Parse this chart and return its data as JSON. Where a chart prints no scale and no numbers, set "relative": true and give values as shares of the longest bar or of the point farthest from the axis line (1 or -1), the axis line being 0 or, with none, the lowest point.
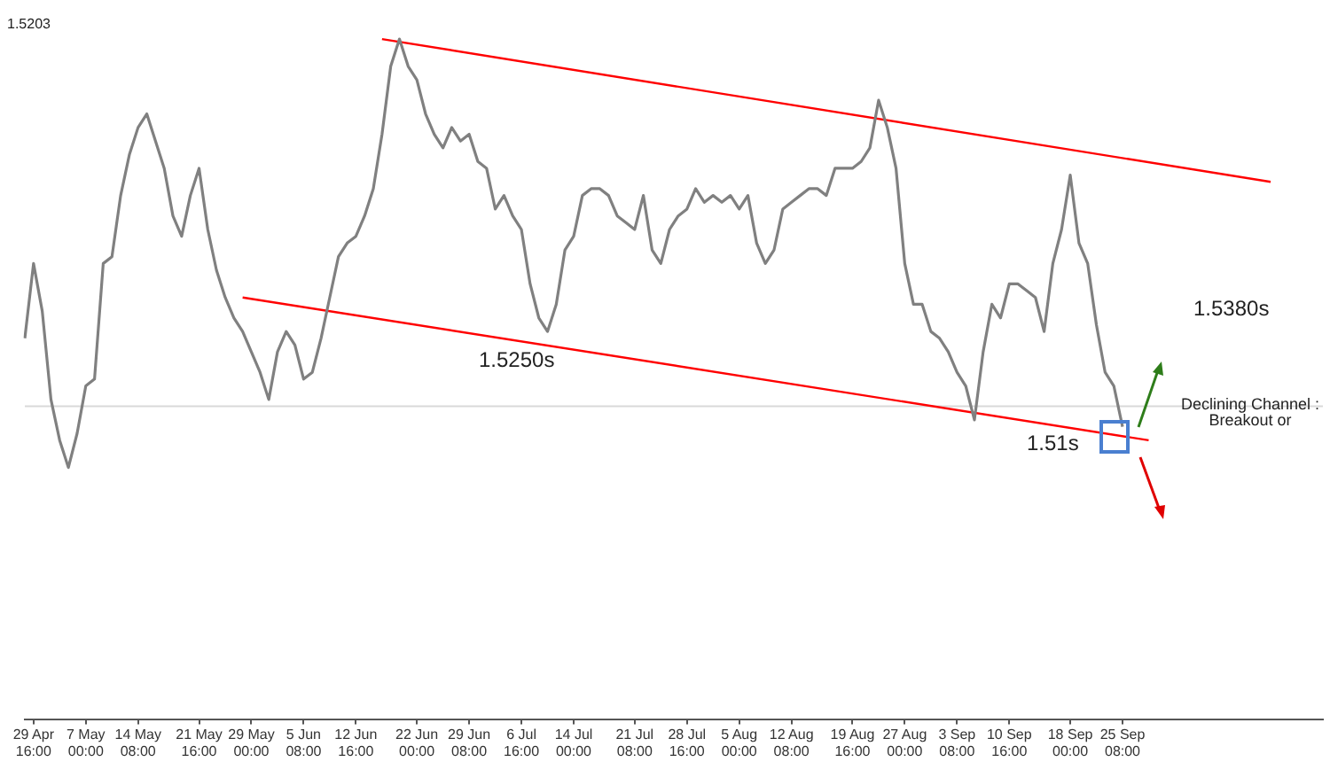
{
  "chart_data": {
    "type": "line",
    "relative": true,
    "categories": [
      null,
      "29 Apr 16:00",
      null,
      null,
      null,
      null,
      null,
      "7 May 00:00",
      null,
      null,
      null,
      null,
      null,
      "14 May 08:00",
      null,
      null,
      null,
      null,
      null,
      null,
      "21 May 16:00",
      null,
      null,
      null,
      null,
      null,
      "29 May 00:00",
      null,
      null,
      null,
      null,
      null,
      "5 Jun 08:00",
      null,
      null,
      null,
      null,
      null,
      "12 Jun 16:00",
      null,
      null,
      null,
      null,
      null,
      null,
      "22 Jun 00:00",
      null,
      null,
      null,
      null,
      null,
      "29 Jun 08:00",
      null,
      null,
      null,
      null,
      null,
      "6 Jul 16:00",
      null,
      null,
      null,
      null,
      null,
      "14 Jul 00:00",
      null,
      null,
      null,
      null,
      null,
      null,
      "21 Jul 08:00",
      null,
      null,
      null,
      null,
      null,
      "28 Jul 16:00",
      null,
      null,
      null,
      null,
      null,
      "5 Aug 00:00",
      null,
      null,
      null,
      null,
      null,
      "12 Aug 08:00",
      null,
      null,
      null,
      null,
      null,
      null,
      "19 Aug 16:00",
      null,
      null,
      null,
      null,
      null,
      "27 Aug 00:00",
      null,
      null,
      null,
      null,
      null,
      "3 Sep 08:00",
      null,
      null,
      null,
      null,
      null,
      "10 Sep 16:00",
      null,
      null,
      null,
      null,
      null,
      null,
      "18 Sep 00:00",
      null,
      null,
      null,
      null,
      null,
      "25 Sep 08:00",
      null,
      null,
      null,
      null,
      null,
      null,
      null,
      null,
      null,
      null,
      null,
      null,
      null,
      null,
      null,
      null,
      null,
      null,
      null,
      null,
      null,
      null,
      null
    ],
    "series": [
      {
        "color": "#808080",
        "values": [
          0.56,
          0.67,
          0.6,
          0.47,
          0.41,
          0.37,
          0.42,
          0.49,
          0.5,
          0.67,
          0.68,
          0.77,
          0.83,
          0.87,
          0.89,
          0.85,
          0.81,
          0.74,
          0.71,
          0.77,
          0.81,
          0.72,
          0.66,
          0.62,
          0.59,
          0.57,
          0.54,
          0.51,
          0.47,
          0.54,
          0.57,
          0.55,
          0.5,
          0.51,
          0.56,
          0.62,
          0.68,
          0.7,
          0.71,
          0.74,
          0.78,
          0.86,
          0.96,
          1.0,
          0.96,
          0.94,
          0.89,
          0.86,
          0.84,
          0.87,
          0.85,
          0.86,
          0.82,
          0.81,
          0.75,
          0.77,
          0.74,
          0.72,
          0.64,
          0.59,
          0.57,
          0.61,
          0.69,
          0.71,
          0.77,
          0.78,
          0.78,
          0.77,
          0.74,
          0.73,
          0.72,
          0.77,
          0.69,
          0.67,
          0.72,
          0.74,
          0.75,
          0.78,
          0.76,
          0.77,
          0.76,
          0.77,
          0.75,
          0.77,
          0.7,
          0.67,
          0.69,
          0.75,
          0.76,
          0.77,
          0.78,
          0.78,
          0.77,
          0.81,
          0.81,
          0.81,
          0.82,
          0.84,
          0.91,
          0.87,
          0.81,
          0.67,
          0.61,
          0.61,
          0.57,
          0.56,
          0.54,
          0.51,
          0.49,
          0.44,
          0.54,
          0.61,
          0.59,
          0.64,
          0.64,
          0.63,
          0.62,
          0.57,
          0.67,
          0.72,
          0.8,
          0.7,
          0.67,
          0.58,
          0.51,
          0.49,
          0.43,
          null,
          null,
          null,
          null,
          null,
          null,
          null,
          null,
          null,
          null,
          null,
          null,
          null,
          null,
          null,
          null,
          null,
          null,
          null,
          null,
          null,
          null,
          null
        ]
      },
      {
        "type": "line",
        "color": "#ff0000",
        "values": [
          null,
          null,
          null,
          null,
          null,
          null,
          null,
          null,
          null,
          null,
          null,
          null,
          null,
          null,
          null,
          null,
          null,
          null,
          null,
          null,
          null,
          null,
          null,
          null,
          null,
          null,
          null,
          null,
          null,
          null,
          null,
          null,
          null,
          null,
          null,
          null,
          null,
          null,
          null,
          null,
          null,
          1.0,
          null,
          null,
          null,
          null,
          null,
          null,
          null,
          null,
          null,
          null,
          null,
          null,
          null,
          null,
          null,
          null,
          null,
          null,
          null,
          null,
          null,
          null,
          null,
          null,
          null,
          null,
          null,
          null,
          null,
          null,
          null,
          null,
          null,
          null,
          null,
          null,
          null,
          null,
          null,
          null,
          null,
          null,
          null,
          null,
          null,
          null,
          null,
          null,
          null,
          null,
          null,
          null,
          null,
          null,
          null,
          null,
          null,
          null,
          null,
          null,
          null,
          null,
          null,
          null,
          null,
          null,
          null,
          null,
          null,
          null,
          null,
          null,
          null,
          null,
          null,
          null,
          null,
          null,
          null,
          null,
          null,
          null,
          null,
          null,
          null,
          null,
          null,
          null,
          null,
          null,
          null,
          null,
          null,
          null,
          null,
          null,
          null,
          null,
          null,
          null,
          null,
          0.79,
          null,
          null,
          null,
          null,
          null,
          null
        ]
      },
      {
        "type": "line",
        "color": "#ff0000",
        "values": [
          null,
          null,
          null,
          null,
          null,
          null,
          null,
          null,
          null,
          null,
          null,
          null,
          null,
          null,
          null,
          null,
          null,
          null,
          null,
          null,
          null,
          null,
          null,
          null,
          null,
          0.62,
          null,
          null,
          null,
          null,
          null,
          null,
          null,
          null,
          null,
          null,
          null,
          null,
          null,
          null,
          null,
          null,
          null,
          null,
          null,
          null,
          null,
          null,
          null,
          null,
          null,
          null,
          null,
          null,
          null,
          null,
          null,
          null,
          null,
          null,
          null,
          null,
          null,
          null,
          null,
          null,
          null,
          null,
          null,
          null,
          null,
          null,
          null,
          null,
          null,
          null,
          null,
          null,
          null,
          null,
          null,
          null,
          null,
          null,
          null,
          null,
          null,
          null,
          null,
          null,
          null,
          null,
          null,
          null,
          null,
          null,
          null,
          null,
          null,
          null,
          null,
          null,
          null,
          null,
          null,
          null,
          null,
          null,
          null,
          null,
          null,
          null,
          null,
          null,
          null,
          null,
          null,
          null,
          null,
          null,
          null,
          null,
          null,
          null,
          null,
          null,
          null,
          null,
          null,
          0.41,
          null,
          null,
          null,
          null,
          null,
          null,
          null,
          null,
          null,
          null,
          null,
          null,
          null,
          null,
          null,
          null,
          null,
          null,
          null,
          null
        ]
      }
    ],
    "ref_lines": [
      {
        "axis": "y",
        "value": 0.46,
        "color": "#d9d9d9"
      }
    ],
    "annotations": [
      "1.5203",
      "1.5250s",
      "1.5380s",
      "1.51s",
      "Declining Channel : Breakout or"
    ]
  }
}
